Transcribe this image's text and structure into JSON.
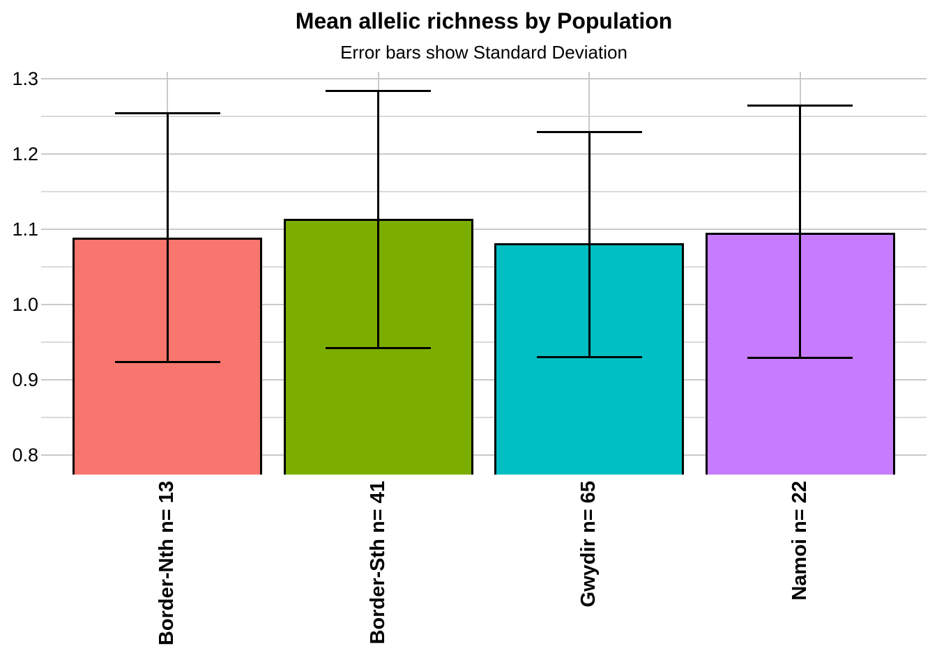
{
  "chart_data": {
    "type": "bar",
    "title": "Mean allelic richness by Population",
    "subtitle": "Error bars show Standard Deviation",
    "categories": [
      "Border-Nth n= 13",
      "Border-Sth n= 41",
      "Gwydir n= 65",
      "Namoi n= 22"
    ],
    "series": [
      {
        "name": "Mean allelic richness",
        "values": [
          1.089,
          1.114,
          1.081,
          1.095
        ]
      }
    ],
    "error_bars": {
      "type": "standard_deviation",
      "upper": [
        1.254,
        1.284,
        1.229,
        1.264
      ],
      "lower": [
        0.923,
        0.942,
        0.93,
        0.929
      ]
    },
    "bar_colors": [
      "#F8766D",
      "#7CAE00",
      "#00BFC4",
      "#C77CFF"
    ],
    "bar_border_color": "#000000",
    "error_bar_color": "#000000",
    "xlabel": "",
    "ylabel": "",
    "y_axis": {
      "tick_labels": [
        "0.8",
        "0.9",
        "1.0",
        "1.1",
        "1.2",
        "1.3"
      ],
      "tick_values": [
        0.8,
        0.9,
        1.0,
        1.1,
        1.2,
        1.3
      ],
      "minor_tick_values": [
        0.85,
        0.95,
        1.05,
        1.15,
        1.25
      ],
      "range": [
        0.774,
        1.309
      ]
    },
    "grid": {
      "show": true,
      "major_color": "#C9C9C9",
      "minor_color": "#DADADA",
      "vertical_category_lines": true
    },
    "legend": "none",
    "background_color": "#FFFFFF"
  }
}
